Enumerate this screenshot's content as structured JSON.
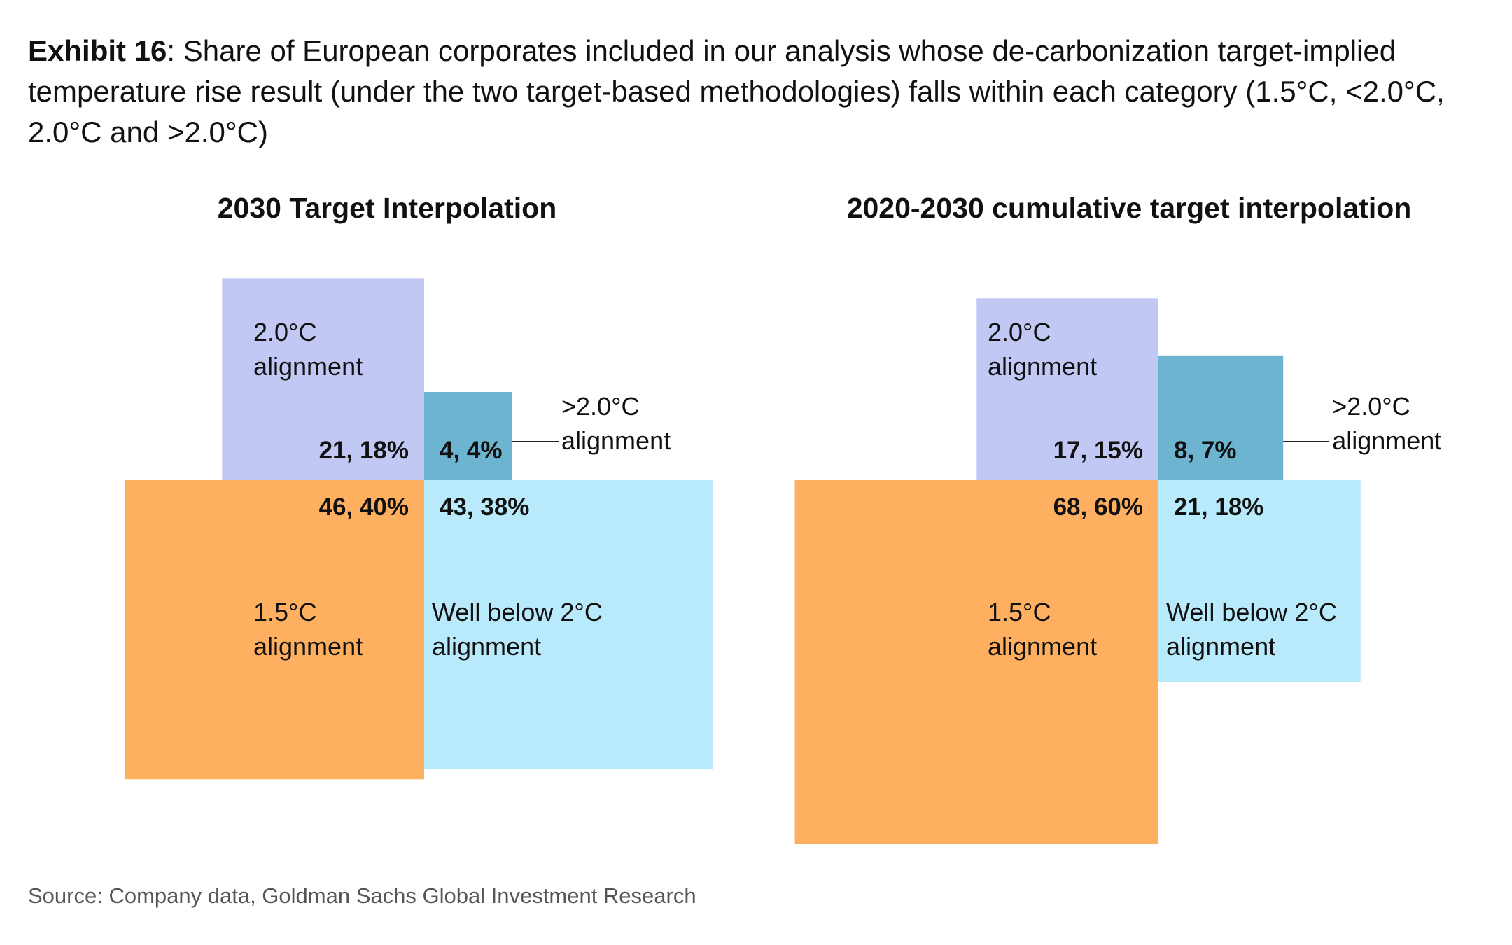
{
  "title": {
    "exhibit": "Exhibit 16",
    "text": ": Share of European corporates included in our analysis whose de-carbonization target-implied temperature rise result (under the two target-based methodologies) falls within each category (1.5°C, <2.0°C, 2.0°C and >2.0°C)"
  },
  "source": "Source: Company data, Goldman Sachs Global Investment Research",
  "colors": {
    "c15": "#FFAF60",
    "well_below": "#B8EAFC",
    "c20": "#C0C8F3",
    "above20": "#6DB4D0"
  },
  "chart_data": [
    {
      "type": "area",
      "title": "2030 Target Interpolation",
      "categories": [
        {
          "key": "c20",
          "label_lines": [
            "2.0°C",
            "alignment"
          ],
          "count": 21,
          "share_pct": 18,
          "value_label": "21, 18%"
        },
        {
          "key": "above20",
          "label_lines": [
            ">2.0°C",
            "alignment"
          ],
          "count": 4,
          "share_pct": 4,
          "value_label": "4, 4%"
        },
        {
          "key": "c15",
          "label_lines": [
            "1.5°C",
            "alignment"
          ],
          "count": 46,
          "share_pct": 40,
          "value_label": "46, 40%"
        },
        {
          "key": "well_below",
          "label_lines": [
            "Well below 2°C",
            "alignment"
          ],
          "count": 43,
          "share_pct": 38,
          "value_label": "43, 38%"
        }
      ]
    },
    {
      "type": "area",
      "title": "2020-2030 cumulative target interpolation",
      "categories": [
        {
          "key": "c20",
          "label_lines": [
            "2.0°C",
            "alignment"
          ],
          "count": 17,
          "share_pct": 15,
          "value_label": "17, 15%"
        },
        {
          "key": "above20",
          "label_lines": [
            ">2.0°C",
            "alignment"
          ],
          "count": 8,
          "share_pct": 7,
          "value_label": "8, 7%"
        },
        {
          "key": "c15",
          "label_lines": [
            "1.5°C",
            "alignment"
          ],
          "count": 68,
          "share_pct": 60,
          "value_label": "68, 60%"
        },
        {
          "key": "well_below",
          "label_lines": [
            "Well below 2°C",
            "alignment"
          ],
          "count": 21,
          "share_pct": 18,
          "value_label": "21, 18%"
        }
      ]
    }
  ]
}
